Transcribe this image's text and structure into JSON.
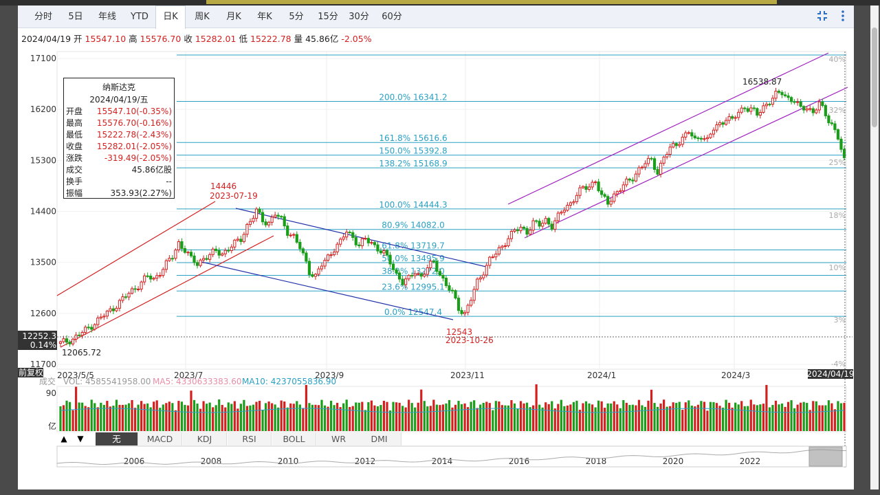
{
  "tabs": [
    {
      "label": "分时",
      "active": false
    },
    {
      "label": "5日",
      "active": false
    },
    {
      "label": "年线",
      "active": false
    },
    {
      "label": "YTD",
      "active": false
    },
    {
      "label": "日K",
      "active": true
    },
    {
      "label": "周K",
      "active": false
    },
    {
      "label": "月K",
      "active": false
    },
    {
      "label": "年K",
      "active": false
    },
    {
      "label": "5分",
      "active": false
    },
    {
      "label": "15分",
      "active": false
    },
    {
      "label": "30分",
      "active": false
    },
    {
      "label": "60分",
      "active": false
    }
  ],
  "icons": {
    "fullscreen": "collapse-icon",
    "menu": "more-vertical-icon"
  },
  "ohlc": {
    "date": "2024/04/19",
    "open_label": "开",
    "open": "15547.10",
    "high_label": "高",
    "high": "15576.70",
    "close_label": "收",
    "close": "15282.01",
    "low_label": "低",
    "low": "15222.78",
    "vol_label": "量",
    "vol": "45.86亿",
    "chg": "-2.05%"
  },
  "tooltip": {
    "name": "纳斯达克",
    "date": "2024/04/19/五",
    "rows": [
      {
        "k": "开盘",
        "v": "15547.10(-0.35%)",
        "red": true
      },
      {
        "k": "最高",
        "v": "15576.70(-0.16%)",
        "red": true
      },
      {
        "k": "最低",
        "v": "15222.78(-2.43%)",
        "red": true
      },
      {
        "k": "收盘",
        "v": "15282.01(-2.05%)",
        "red": true
      },
      {
        "k": "涨跌",
        "v": "-319.49(-2.05%)",
        "red": true
      },
      {
        "k": "成交",
        "v": "45.86亿股",
        "red": false
      },
      {
        "k": "换手",
        "v": "--",
        "red": false
      },
      {
        "k": "振幅",
        "v": "353.93(2.27%)",
        "red": false
      }
    ]
  },
  "colors": {
    "up": "#d41f1f",
    "down": "#1a9e1a",
    "fib": "#2aa1c4",
    "channel_red": "#d41f1f",
    "channel_blue": "#2233aa",
    "channel_purple": "#a020c0",
    "ma5": "#e88fa8",
    "ma10": "#2aa1c4"
  },
  "chart_data": {
    "type": "candlestick",
    "title": "纳斯达克",
    "ylim": [
      11700,
      17100
    ],
    "yticks": [
      "17100",
      "16200",
      "15300",
      "14400",
      "13500",
      "12600",
      "11700"
    ],
    "right_pct_ticks": [
      "40%",
      "32%",
      "25%",
      "18%",
      "10%",
      "3%",
      "-4%"
    ],
    "xticks": [
      "2023/5/5",
      "2023/7",
      "2023/9",
      "2023/11",
      "2024/1",
      "2024/3"
    ],
    "x_end_label": "2024/04/19",
    "crosshair_value": "12252.3",
    "crosshair_pct": "0.14%",
    "adjust_label": "前复权",
    "fib_levels": [
      {
        "label": "200.0% 16341.2",
        "value": 16341.2
      },
      {
        "label": "161.8% 15616.6",
        "value": 15616.6
      },
      {
        "label": "150.0% 15392.8",
        "value": 15392.8
      },
      {
        "label": "138.2% 15168.9",
        "value": 15168.9
      },
      {
        "label": "100.0% 14444.3",
        "value": 14444.3
      },
      {
        "label": "80.9% 14082.0",
        "value": 14082.0
      },
      {
        "label": "61.8% 13719.7",
        "value": 13719.7
      },
      {
        "label": "50.0% 13495.9",
        "value": 13495.9
      },
      {
        "label": "38.2% 13272.0",
        "value": 13272.0
      },
      {
        "label": "23.6% 12995.1",
        "value": 12995.1
      },
      {
        "label": "0.0% 12547.4",
        "value": 12547.4
      }
    ],
    "annotations": [
      {
        "text": "14446",
        "sub": "2023-07-19"
      },
      {
        "text": "12543",
        "sub": "2023-10-26"
      },
      {
        "text": "16538.87",
        "sub": ""
      },
      {
        "text": "12065.72",
        "sub": ""
      }
    ],
    "close_path": [
      [
        0,
        12070
      ],
      [
        4,
        12150
      ],
      [
        8,
        12300
      ],
      [
        12,
        12480
      ],
      [
        16,
        12650
      ],
      [
        20,
        12850
      ],
      [
        24,
        13050
      ],
      [
        28,
        13250
      ],
      [
        30,
        13200
      ],
      [
        33,
        13400
      ],
      [
        36,
        13600
      ],
      [
        38,
        13850
      ],
      [
        40,
        13720
      ],
      [
        42,
        13550
      ],
      [
        44,
        13480
      ],
      [
        46,
        13580
      ],
      [
        48,
        13620
      ],
      [
        50,
        13700
      ],
      [
        52,
        13660
      ],
      [
        55,
        13780
      ],
      [
        58,
        13920
      ],
      [
        60,
        14150
      ],
      [
        62,
        14300
      ],
      [
        63,
        14400
      ],
      [
        65,
        14250
      ],
      [
        67,
        14200
      ],
      [
        69,
        14350
      ],
      [
        71,
        14250
      ],
      [
        73,
        14050
      ],
      [
        75,
        13950
      ],
      [
        77,
        13750
      ],
      [
        79,
        13500
      ],
      [
        80,
        13350
      ],
      [
        82,
        13250
      ],
      [
        84,
        13450
      ],
      [
        86,
        13600
      ],
      [
        88,
        13750
      ],
      [
        90,
        13850
      ],
      [
        92,
        14050
      ],
      [
        94,
        13950
      ],
      [
        96,
        13800
      ],
      [
        98,
        13900
      ],
      [
        100,
        13850
      ],
      [
        102,
        13750
      ],
      [
        104,
        13650
      ],
      [
        106,
        13500
      ],
      [
        108,
        13300
      ],
      [
        110,
        13150
      ],
      [
        112,
        13200
      ],
      [
        114,
        13350
      ],
      [
        116,
        13250
      ],
      [
        118,
        13400
      ],
      [
        120,
        13500
      ],
      [
        122,
        13300
      ],
      [
        124,
        13100
      ],
      [
        126,
        12950
      ],
      [
        128,
        12700
      ],
      [
        130,
        12600
      ],
      [
        132,
        12850
      ],
      [
        134,
        13150
      ],
      [
        136,
        13350
      ],
      [
        138,
        13550
      ],
      [
        140,
        13650
      ],
      [
        142,
        13780
      ],
      [
        144,
        13950
      ],
      [
        146,
        14050
      ],
      [
        148,
        14100
      ],
      [
        150,
        14050
      ],
      [
        152,
        14200
      ],
      [
        154,
        14150
      ],
      [
        156,
        14250
      ],
      [
        158,
        14150
      ],
      [
        160,
        14300
      ],
      [
        162,
        14450
      ],
      [
        164,
        14550
      ],
      [
        166,
        14700
      ],
      [
        168,
        14800
      ],
      [
        170,
        14850
      ],
      [
        172,
        14950
      ],
      [
        174,
        14650
      ],
      [
        176,
        14550
      ],
      [
        178,
        14700
      ],
      [
        180,
        14800
      ],
      [
        182,
        14900
      ],
      [
        184,
        15000
      ],
      [
        186,
        15150
      ],
      [
        188,
        15250
      ],
      [
        190,
        15300
      ],
      [
        192,
        15100
      ],
      [
        194,
        15350
      ],
      [
        196,
        15500
      ],
      [
        198,
        15600
      ],
      [
        200,
        15700
      ],
      [
        202,
        15800
      ],
      [
        204,
        15650
      ],
      [
        206,
        15750
      ],
      [
        208,
        15650
      ],
      [
        210,
        15850
      ],
      [
        212,
        15950
      ],
      [
        214,
        16050
      ],
      [
        216,
        16000
      ],
      [
        218,
        16150
      ],
      [
        220,
        16250
      ],
      [
        222,
        16200
      ],
      [
        224,
        16100
      ],
      [
        226,
        16250
      ],
      [
        228,
        16350
      ],
      [
        230,
        16450
      ],
      [
        232,
        16500
      ],
      [
        234,
        16400
      ],
      [
        236,
        16350
      ],
      [
        238,
        16200
      ],
      [
        240,
        16250
      ],
      [
        242,
        16150
      ],
      [
        244,
        16300
      ],
      [
        246,
        16100
      ],
      [
        248,
        15950
      ],
      [
        250,
        15700
      ],
      [
        252,
        15282
      ]
    ],
    "volume": {
      "label": "成交",
      "vol_label": "VOL: 4585541958.00",
      "ma5_label": "MA5: 4330633383.60",
      "ma10_label": "MA10: 4237055836.90",
      "ytick_top": "90",
      "unit": "亿"
    },
    "indicators": [
      "无",
      "MACD",
      "KDJ",
      "RSI",
      "BOLL",
      "WR",
      "DMI"
    ],
    "active_indicator": "无",
    "overview_years": [
      "2006",
      "2008",
      "2010",
      "2012",
      "2014",
      "2016",
      "2018",
      "2020",
      "2022"
    ]
  }
}
